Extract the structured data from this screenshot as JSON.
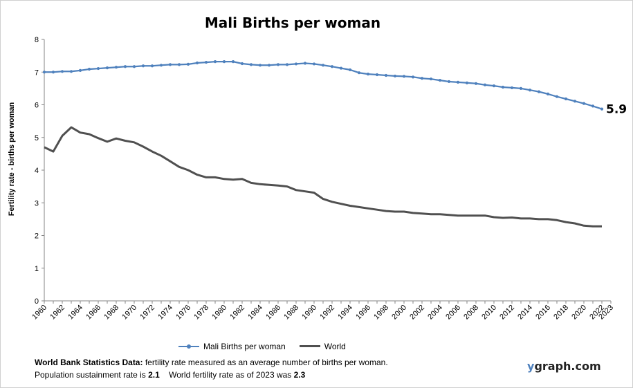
{
  "chart_data": {
    "type": "line",
    "title": "Mali Births per woman",
    "ylabel": "Fertility rate  - births per woman",
    "xlabel": "",
    "ylim": [
      0,
      8
    ],
    "yticks": [
      0,
      1,
      2,
      3,
      4,
      5,
      6,
      7,
      8
    ],
    "xlim": [
      1960,
      2023
    ],
    "xtick_labels": [
      "1960",
      "1962",
      "1964",
      "1966",
      "1968",
      "1970",
      "1972",
      "1974",
      "1976",
      "1978",
      "1980",
      "1982",
      "1984",
      "1986",
      "1988",
      "1990",
      "1992",
      "1994",
      "1996",
      "1998",
      "2000",
      "2002",
      "2004",
      "2006",
      "2008",
      "2010",
      "2012",
      "2014",
      "2016",
      "2018",
      "2020",
      "2022",
      "2023"
    ],
    "x": [
      1960,
      1961,
      1962,
      1963,
      1964,
      1965,
      1966,
      1967,
      1968,
      1969,
      1970,
      1971,
      1972,
      1973,
      1974,
      1975,
      1976,
      1977,
      1978,
      1979,
      1980,
      1981,
      1982,
      1983,
      1984,
      1985,
      1986,
      1987,
      1988,
      1989,
      1990,
      1991,
      1992,
      1993,
      1994,
      1995,
      1996,
      1997,
      1998,
      1999,
      2000,
      2001,
      2002,
      2003,
      2004,
      2005,
      2006,
      2007,
      2008,
      2009,
      2010,
      2011,
      2012,
      2013,
      2014,
      2015,
      2016,
      2017,
      2018,
      2019,
      2020,
      2021,
      2022
    ],
    "series": [
      {
        "name": "Mali Births per woman",
        "color": "#4f81bd",
        "markers": true,
        "values": [
          7.0,
          7.0,
          7.02,
          7.02,
          7.05,
          7.09,
          7.11,
          7.13,
          7.15,
          7.17,
          7.17,
          7.19,
          7.19,
          7.21,
          7.23,
          7.23,
          7.24,
          7.28,
          7.3,
          7.32,
          7.32,
          7.32,
          7.26,
          7.23,
          7.21,
          7.21,
          7.23,
          7.23,
          7.25,
          7.27,
          7.25,
          7.21,
          7.17,
          7.12,
          7.07,
          6.98,
          6.94,
          6.92,
          6.9,
          6.88,
          6.87,
          6.85,
          6.81,
          6.79,
          6.75,
          6.71,
          6.69,
          6.67,
          6.65,
          6.61,
          6.58,
          6.54,
          6.52,
          6.5,
          6.45,
          6.4,
          6.33,
          6.25,
          6.18,
          6.11,
          6.04,
          5.96,
          5.87
        ]
      },
      {
        "name": "World",
        "color": "#505050",
        "markers": false,
        "values": [
          4.7,
          4.57,
          5.05,
          5.31,
          5.15,
          5.1,
          4.98,
          4.87,
          4.97,
          4.9,
          4.85,
          4.72,
          4.57,
          4.44,
          4.27,
          4.1,
          4.0,
          3.86,
          3.78,
          3.78,
          3.73,
          3.71,
          3.73,
          3.61,
          3.57,
          3.55,
          3.53,
          3.5,
          3.39,
          3.35,
          3.31,
          3.12,
          3.03,
          2.97,
          2.91,
          2.87,
          2.83,
          2.79,
          2.75,
          2.73,
          2.73,
          2.69,
          2.67,
          2.65,
          2.65,
          2.63,
          2.61,
          2.61,
          2.61,
          2.61,
          2.56,
          2.54,
          2.55,
          2.52,
          2.52,
          2.5,
          2.5,
          2.47,
          2.41,
          2.37,
          2.3,
          2.28,
          2.28
        ]
      }
    ],
    "end_label": "5.9",
    "legend_position": "bottom"
  },
  "footnote": {
    "line1_bold": "World Bank Statistics Data:",
    "line1_rest": " fertility rate measured as an average number  of births per woman.",
    "line2_a": "Population sustainment rate is ",
    "line2_val1": "2.1",
    "line2_b": "    World fertility rate as of 2023 was ",
    "line2_val2": "2.3"
  },
  "brand": {
    "y": "y",
    "rest": "graph.com"
  }
}
